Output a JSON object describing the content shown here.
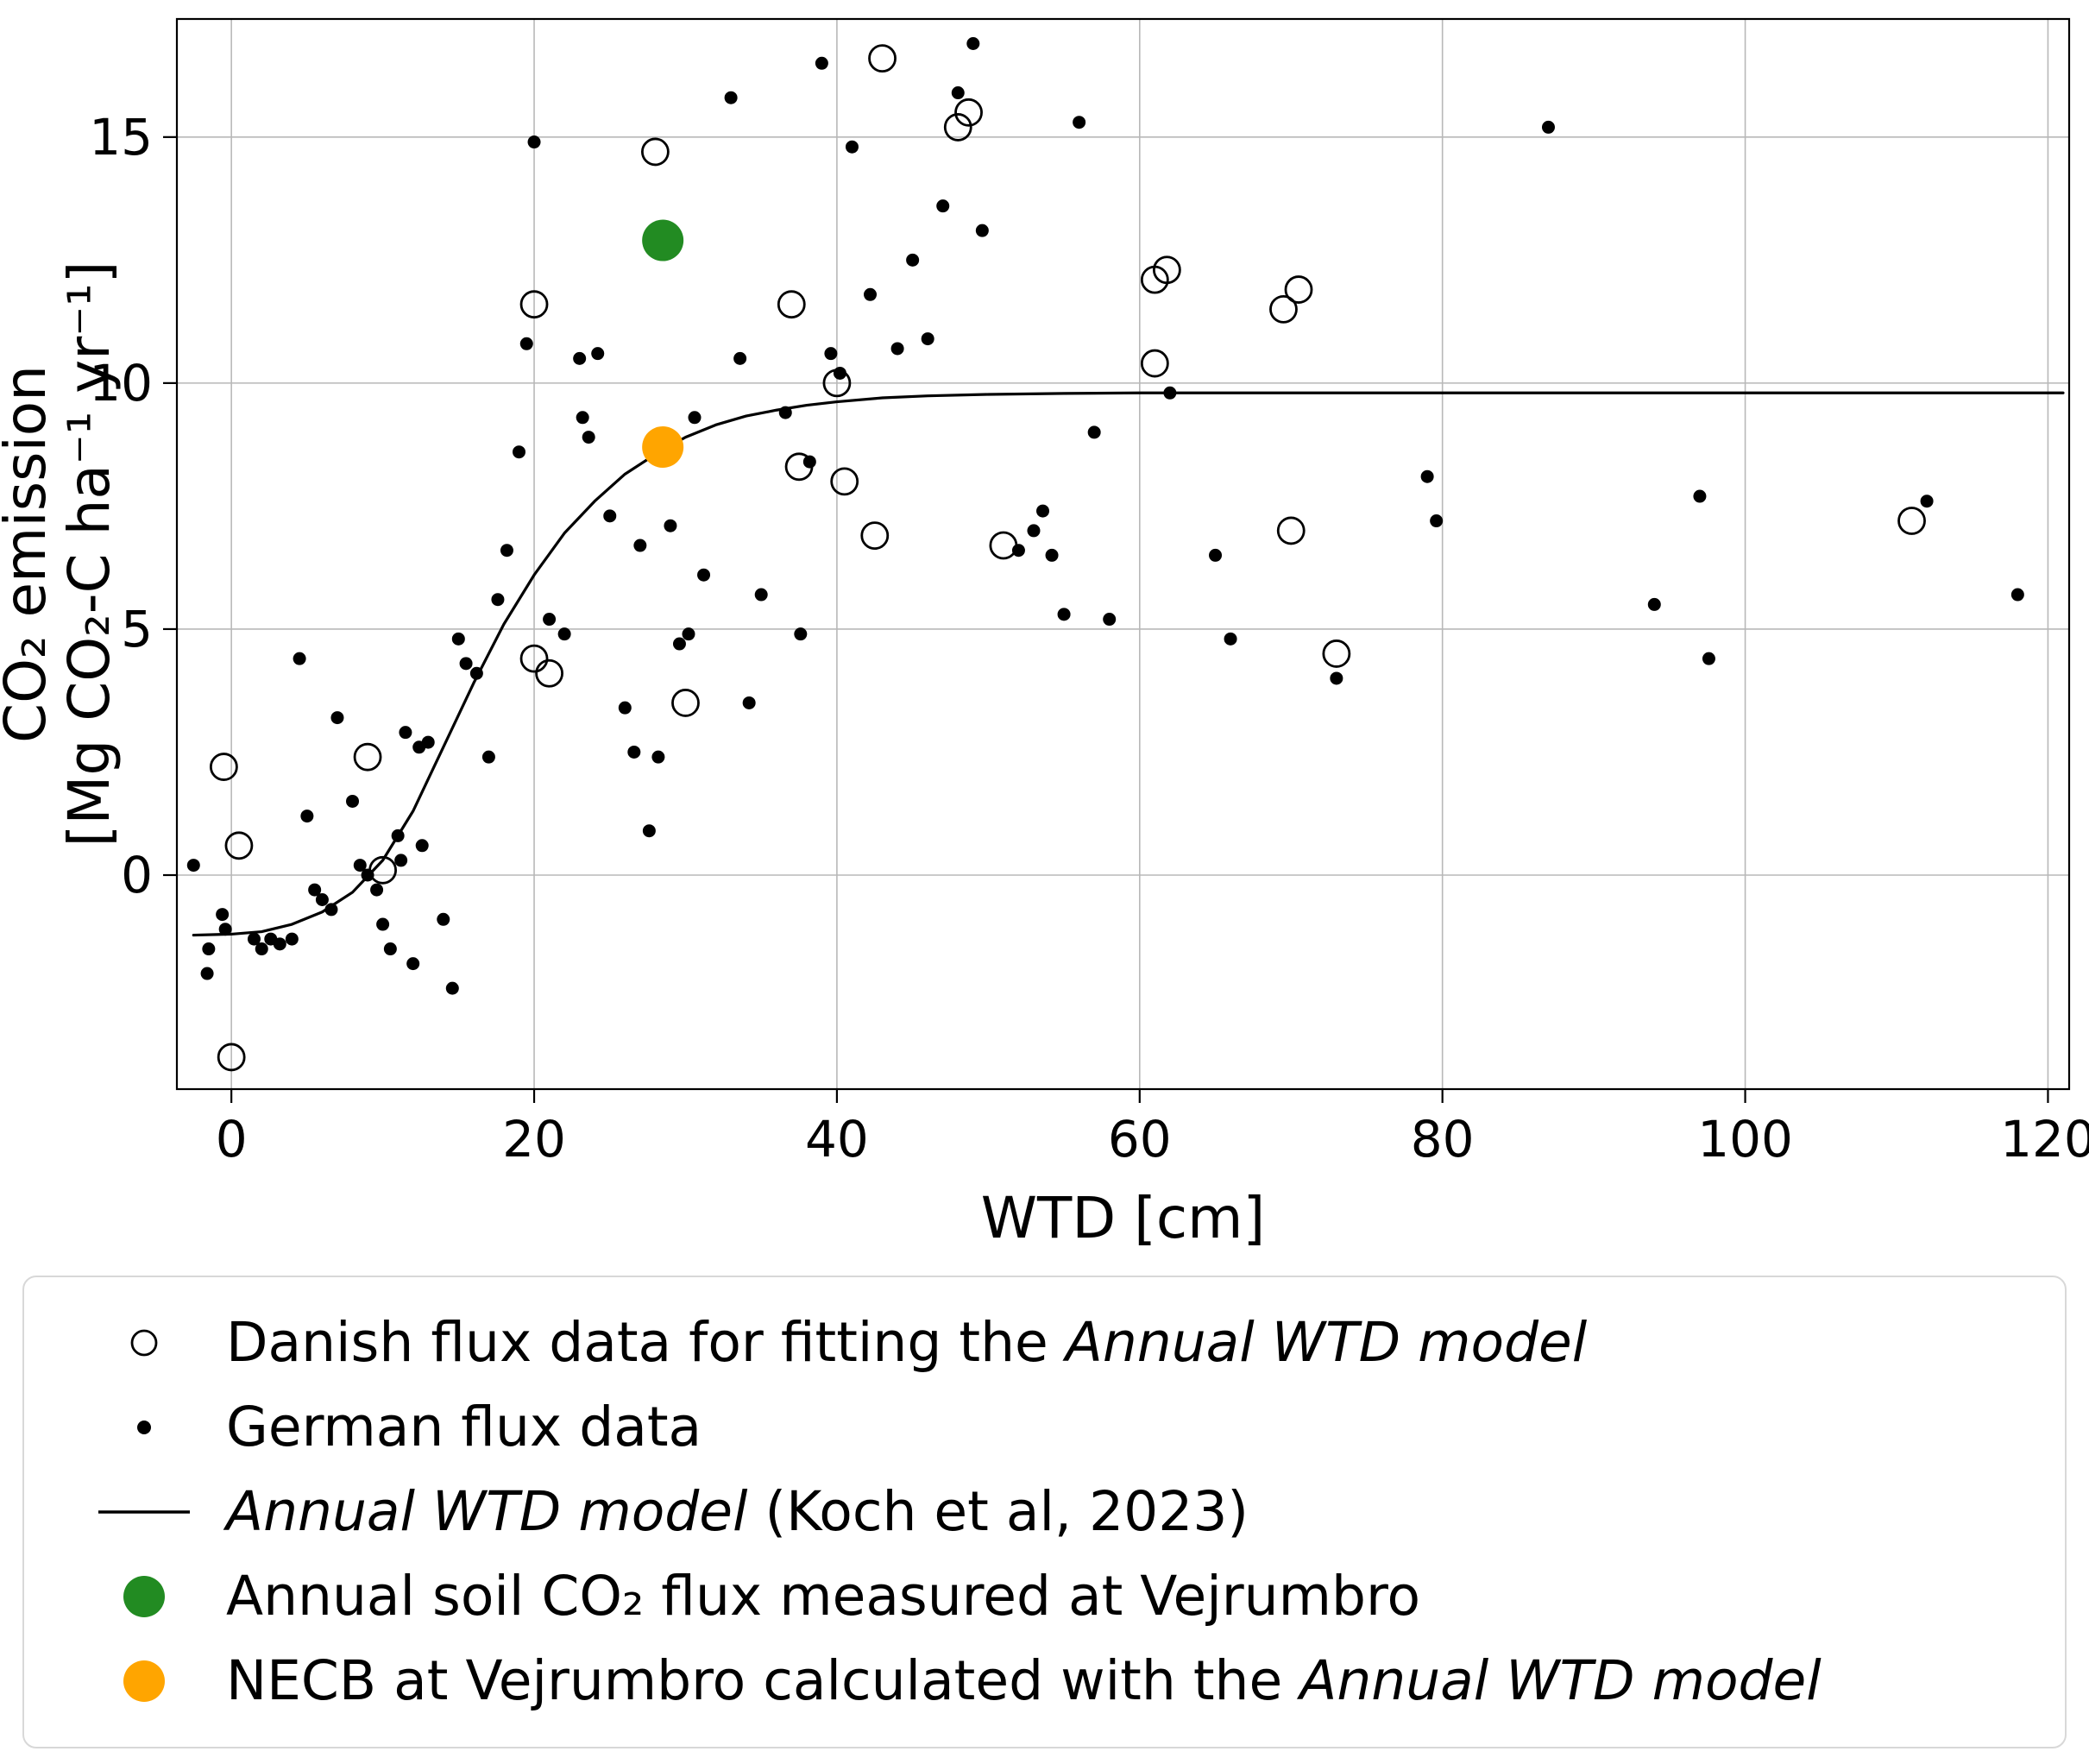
{
  "chart_data": {
    "type": "scatter",
    "title": "",
    "xlabel": "WTD [cm]",
    "ylabel": "CO₂ emission [Mg CO₂-C ha⁻¹ yr⁻¹]",
    "ylabel_lines": [
      "CO₂ emission",
      "[Mg CO₂-C ha⁻¹ yr⁻¹]"
    ],
    "xlim": [
      -3.6,
      121.4
    ],
    "ylim": [
      -4.35,
      17.4
    ],
    "xticks": [
      0,
      20,
      40,
      60,
      80,
      100,
      120
    ],
    "yticks": [
      0,
      5,
      10,
      15
    ],
    "grid": true,
    "grid_color": "#b8b8b8",
    "legend_position": "below",
    "series": [
      {
        "id": "danish",
        "name": "Danish flux data for fitting the Annual WTD model",
        "type": "scatter",
        "marker": "open-circle",
        "color": "#000000",
        "points": [
          [
            -0.5,
            2.2
          ],
          [
            0.5,
            0.6
          ],
          [
            0.0,
            -3.7
          ],
          [
            9.0,
            2.4
          ],
          [
            10.0,
            0.1
          ],
          [
            20.0,
            11.6
          ],
          [
            20.0,
            4.4
          ],
          [
            21.0,
            4.1
          ],
          [
            28.0,
            14.7
          ],
          [
            30.0,
            3.5
          ],
          [
            37.0,
            11.6
          ],
          [
            37.5,
            8.3
          ],
          [
            40.0,
            10.0
          ],
          [
            40.5,
            8.0
          ],
          [
            42.5,
            6.9
          ],
          [
            43.0,
            16.6
          ],
          [
            48.0,
            15.2
          ],
          [
            48.7,
            15.5
          ],
          [
            51.0,
            6.7
          ],
          [
            61.0,
            12.1
          ],
          [
            61.8,
            12.3
          ],
          [
            61.0,
            10.4
          ],
          [
            69.5,
            11.5
          ],
          [
            70.5,
            11.9
          ],
          [
            70.0,
            7.0
          ],
          [
            73.0,
            4.5
          ],
          [
            111.0,
            7.2
          ]
        ]
      },
      {
        "id": "german",
        "name": "German flux data",
        "type": "scatter",
        "marker": "dot",
        "color": "#000000",
        "points": [
          [
            -2.5,
            0.2
          ],
          [
            -1.5,
            -1.5
          ],
          [
            -1.6,
            -2.0
          ],
          [
            -0.6,
            -0.8
          ],
          [
            -0.4,
            -1.1
          ],
          [
            1.5,
            -1.3
          ],
          [
            2.0,
            -1.5
          ],
          [
            2.6,
            -1.3
          ],
          [
            3.2,
            -1.4
          ],
          [
            4.0,
            -1.3
          ],
          [
            4.5,
            4.4
          ],
          [
            5.0,
            1.2
          ],
          [
            5.5,
            -0.3
          ],
          [
            6.0,
            -0.5
          ],
          [
            6.6,
            -0.7
          ],
          [
            7.0,
            3.2
          ],
          [
            8.0,
            1.5
          ],
          [
            8.5,
            0.2
          ],
          [
            9.0,
            0.0
          ],
          [
            9.6,
            -0.3
          ],
          [
            10.0,
            -1.0
          ],
          [
            10.5,
            -1.5
          ],
          [
            11.0,
            0.8
          ],
          [
            11.2,
            0.3
          ],
          [
            11.5,
            2.9
          ],
          [
            12.0,
            -1.8
          ],
          [
            12.4,
            2.6
          ],
          [
            12.6,
            0.6
          ],
          [
            13.0,
            2.7
          ],
          [
            14.0,
            -0.9
          ],
          [
            14.6,
            -2.3
          ],
          [
            15.0,
            4.8
          ],
          [
            15.5,
            4.3
          ],
          [
            16.2,
            4.1
          ],
          [
            17.0,
            2.4
          ],
          [
            17.6,
            5.6
          ],
          [
            18.2,
            6.6
          ],
          [
            19.0,
            8.6
          ],
          [
            19.5,
            10.8
          ],
          [
            20.0,
            14.9
          ],
          [
            21.0,
            5.2
          ],
          [
            22.0,
            4.9
          ],
          [
            23.0,
            10.5
          ],
          [
            23.2,
            9.3
          ],
          [
            23.6,
            8.9
          ],
          [
            24.2,
            10.6
          ],
          [
            25.0,
            7.3
          ],
          [
            26.0,
            3.4
          ],
          [
            26.6,
            2.5
          ],
          [
            27.0,
            6.7
          ],
          [
            27.6,
            0.9
          ],
          [
            28.2,
            2.4
          ],
          [
            29.0,
            7.1
          ],
          [
            29.6,
            4.7
          ],
          [
            30.2,
            4.9
          ],
          [
            30.6,
            9.3
          ],
          [
            31.2,
            6.1
          ],
          [
            33.0,
            15.8
          ],
          [
            33.6,
            10.5
          ],
          [
            34.2,
            3.5
          ],
          [
            35.0,
            5.7
          ],
          [
            36.6,
            9.4
          ],
          [
            37.6,
            4.9
          ],
          [
            38.2,
            8.4
          ],
          [
            39.0,
            16.5
          ],
          [
            39.6,
            10.6
          ],
          [
            40.2,
            10.2
          ],
          [
            41.0,
            14.8
          ],
          [
            42.2,
            11.8
          ],
          [
            44.0,
            10.7
          ],
          [
            45.0,
            12.5
          ],
          [
            46.0,
            10.9
          ],
          [
            47.0,
            13.6
          ],
          [
            48.0,
            15.9
          ],
          [
            49.0,
            16.9
          ],
          [
            49.6,
            13.1
          ],
          [
            52.0,
            6.6
          ],
          [
            53.0,
            7.0
          ],
          [
            53.6,
            7.4
          ],
          [
            54.2,
            6.5
          ],
          [
            55.0,
            5.3
          ],
          [
            56.0,
            15.3
          ],
          [
            57.0,
            9.0
          ],
          [
            58.0,
            5.2
          ],
          [
            62.0,
            9.8
          ],
          [
            65.0,
            6.5
          ],
          [
            66.0,
            4.8
          ],
          [
            73.0,
            4.0
          ],
          [
            79.0,
            8.1
          ],
          [
            79.6,
            7.2
          ],
          [
            87.0,
            15.2
          ],
          [
            94.0,
            5.5
          ],
          [
            97.0,
            7.7
          ],
          [
            97.6,
            4.4
          ],
          [
            112.0,
            7.6
          ],
          [
            118.0,
            5.7
          ]
        ]
      },
      {
        "id": "model",
        "name": "Annual WTD model (Koch et al, 2023)",
        "type": "line",
        "color": "#000000",
        "points": [
          [
            -2.5,
            -1.22
          ],
          [
            0,
            -1.2
          ],
          [
            2,
            -1.15
          ],
          [
            4,
            -1.0
          ],
          [
            6,
            -0.75
          ],
          [
            8,
            -0.35
          ],
          [
            10,
            0.3
          ],
          [
            12,
            1.3
          ],
          [
            14,
            2.6
          ],
          [
            16,
            3.9
          ],
          [
            18,
            5.1
          ],
          [
            20,
            6.1
          ],
          [
            22,
            6.95
          ],
          [
            24,
            7.6
          ],
          [
            26,
            8.15
          ],
          [
            28,
            8.55
          ],
          [
            30,
            8.9
          ],
          [
            32,
            9.15
          ],
          [
            34,
            9.33
          ],
          [
            36,
            9.45
          ],
          [
            38,
            9.55
          ],
          [
            40,
            9.62
          ],
          [
            43,
            9.7
          ],
          [
            46,
            9.74
          ],
          [
            50,
            9.77
          ],
          [
            55,
            9.79
          ],
          [
            60,
            9.8
          ],
          [
            70,
            9.8
          ],
          [
            80,
            9.8
          ],
          [
            90,
            9.8
          ],
          [
            100,
            9.8
          ],
          [
            110,
            9.8
          ],
          [
            121,
            9.8
          ]
        ]
      },
      {
        "id": "vejrumbro-flux",
        "name": "Annual soil CO₂ flux measured at Vejrumbro",
        "type": "scatter",
        "marker": "filled-circle",
        "color": "#228B22",
        "points": [
          [
            28.5,
            12.9
          ]
        ]
      },
      {
        "id": "vejrumbro-necb",
        "name": "NECB at Vejrumbro calculated with the Annual WTD model",
        "type": "scatter",
        "marker": "filled-circle",
        "color": "#FFA500",
        "points": [
          [
            28.5,
            8.7
          ]
        ]
      }
    ]
  },
  "legend": {
    "items": [
      {
        "marker": "open-circle",
        "color": "#000000",
        "segments": [
          {
            "text": "Danish flux data for fitting the ",
            "italic": false
          },
          {
            "text": "Annual WTD model",
            "italic": true
          }
        ]
      },
      {
        "marker": "dot",
        "color": "#000000",
        "segments": [
          {
            "text": "German flux data",
            "italic": false
          }
        ]
      },
      {
        "marker": "line",
        "color": "#000000",
        "segments": [
          {
            "text": "Annual WTD model",
            "italic": true
          },
          {
            "text": " (Koch et al, 2023)",
            "italic": false
          }
        ]
      },
      {
        "marker": "filled-circle",
        "color": "#228B22",
        "segments": [
          {
            "text": "Annual soil CO₂ flux measured at Vejrumbro",
            "italic": false
          }
        ]
      },
      {
        "marker": "filled-circle",
        "color": "#FFA500",
        "segments": [
          {
            "text": "NECB at Vejrumbro calculated with the ",
            "italic": false
          },
          {
            "text": "Annual WTD model",
            "italic": true
          }
        ]
      }
    ]
  }
}
